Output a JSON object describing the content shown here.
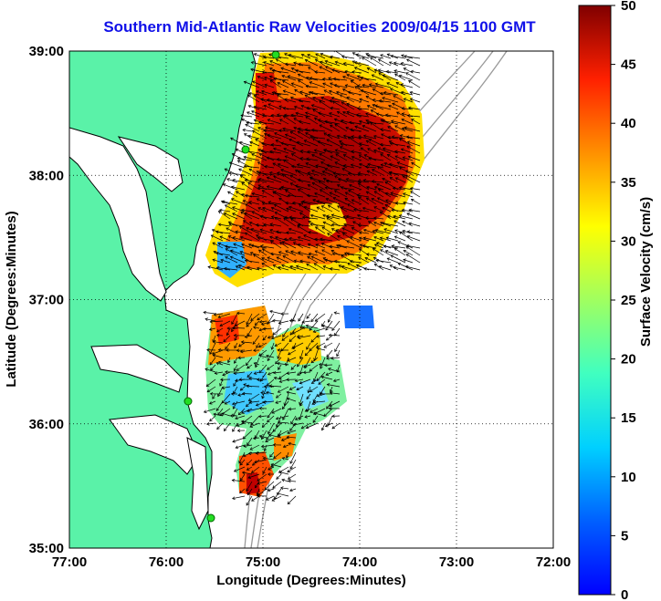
{
  "title": "Southern Mid-Atlantic Raw Velocities 2009/04/15 1100 GMT",
  "map": {
    "xlabel": "Longitude (Degrees:Minutes)",
    "ylabel": "Latitude (Degrees:Minutes)",
    "lon_ticks": [
      "77:00",
      "76:00",
      "75:00",
      "74:00",
      "73:00",
      "72:00"
    ],
    "lat_ticks": [
      "39:00",
      "38:00",
      "37:00",
      "36:00",
      "35:00"
    ],
    "lon_range": [
      -77,
      -72
    ],
    "lat_range": [
      35,
      39
    ],
    "grid": "dotted",
    "land_color": "#5af2a8",
    "coast_color": "#000000",
    "bathymetry_color": "#9a9a9a",
    "station_color": "#22dd22"
  },
  "colorbar": {
    "label": "Surface Velocity (cm/s)",
    "ticks": [
      "0",
      "5",
      "10",
      "15",
      "20",
      "25",
      "30",
      "35",
      "40",
      "45",
      "50"
    ],
    "range": [
      0,
      50
    ],
    "colormap": "jet"
  }
}
